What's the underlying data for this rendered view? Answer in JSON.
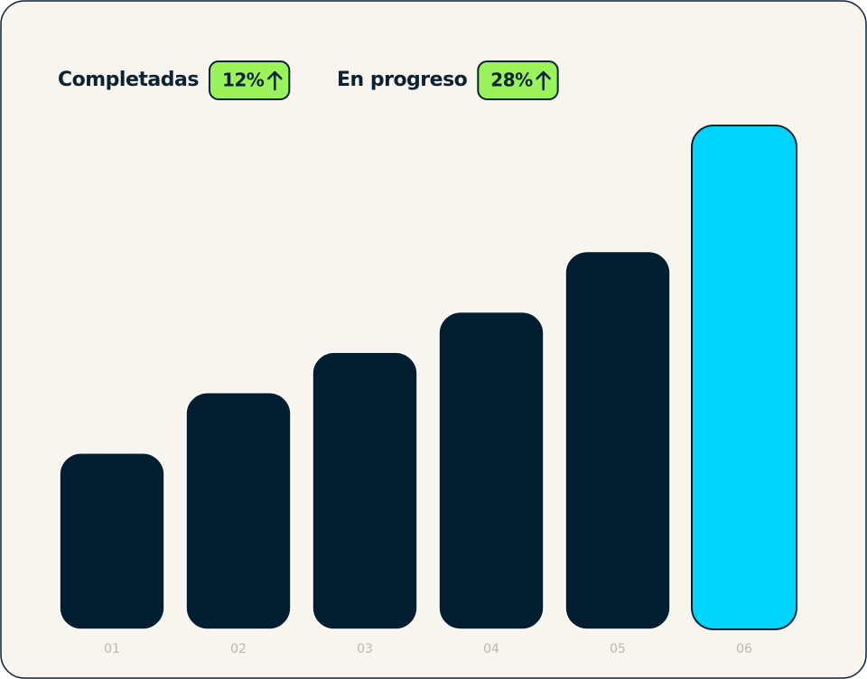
{
  "chart_data": {
    "type": "bar",
    "stats": [
      {
        "label": "Completadas",
        "badge": "12%"
      },
      {
        "label": "En progreso",
        "badge": "28%"
      }
    ],
    "categories": [
      "01",
      "02",
      "03",
      "04",
      "05",
      "06"
    ],
    "values": [
      35,
      47,
      55,
      63,
      75,
      100
    ],
    "colors": [
      "#021e30",
      "#021e30",
      "#021e30",
      "#021e30",
      "#021e30",
      "#00d4ff"
    ],
    "badge_color": "#9af25c"
  }
}
